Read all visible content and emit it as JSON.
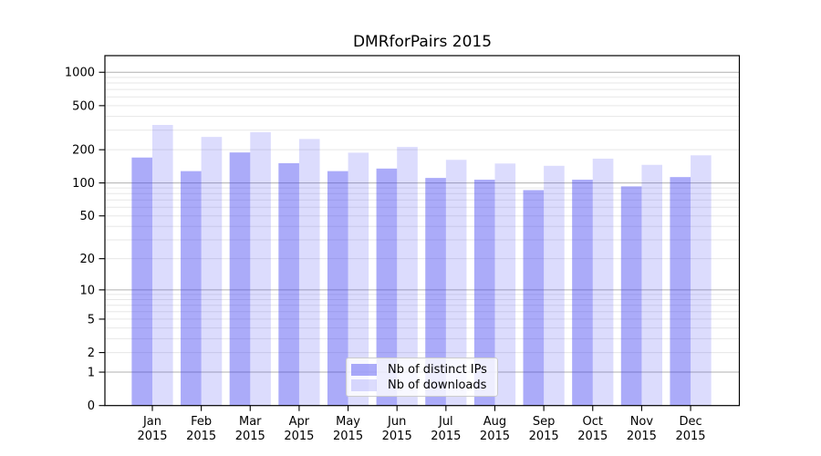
{
  "figure": {
    "title": "DMRforPairs 2015"
  },
  "chart_data": {
    "type": "bar",
    "title": "DMRforPairs 2015",
    "xlabel": "",
    "ylabel": "",
    "yscale": "log(1+x)",
    "grid": true,
    "legend_position": "lower-center",
    "categories": [
      "Jan 2015",
      "Feb 2015",
      "Mar 2015",
      "Apr 2015",
      "May 2015",
      "Jun 2015",
      "Jul 2015",
      "Aug 2015",
      "Sep 2015",
      "Oct 2015",
      "Nov 2015",
      "Dec 2015"
    ],
    "series": [
      {
        "name": "Nb of distinct IPs",
        "color": "rgba(60,60,242,0.43)",
        "values": [
          170,
          128,
          189,
          151,
          128,
          135,
          111,
          107,
          86,
          107,
          93,
          113
        ]
      },
      {
        "name": "Nb of downloads",
        "color": "rgba(60,60,242,0.18)",
        "values": [
          335,
          261,
          288,
          250,
          188,
          212,
          162,
          150,
          143,
          166,
          146,
          178
        ]
      }
    ],
    "y_tick_labels": [
      0,
      1,
      2,
      5,
      10,
      20,
      50,
      100,
      200,
      500,
      1000
    ],
    "y_major_gridlines": [
      1,
      10,
      100,
      1000
    ],
    "y_minor_gridlines": [
      2,
      3,
      4,
      5,
      6,
      7,
      8,
      9,
      20,
      30,
      40,
      50,
      60,
      70,
      80,
      90,
      200,
      300,
      400,
      500,
      600,
      700,
      800,
      900
    ],
    "ylim": [
      0,
      1400
    ],
    "colors": {
      "major_grid": "#b0b0b0",
      "minor_grid": "#e7e7e7",
      "axis": "#000000",
      "text": "#000000"
    }
  }
}
